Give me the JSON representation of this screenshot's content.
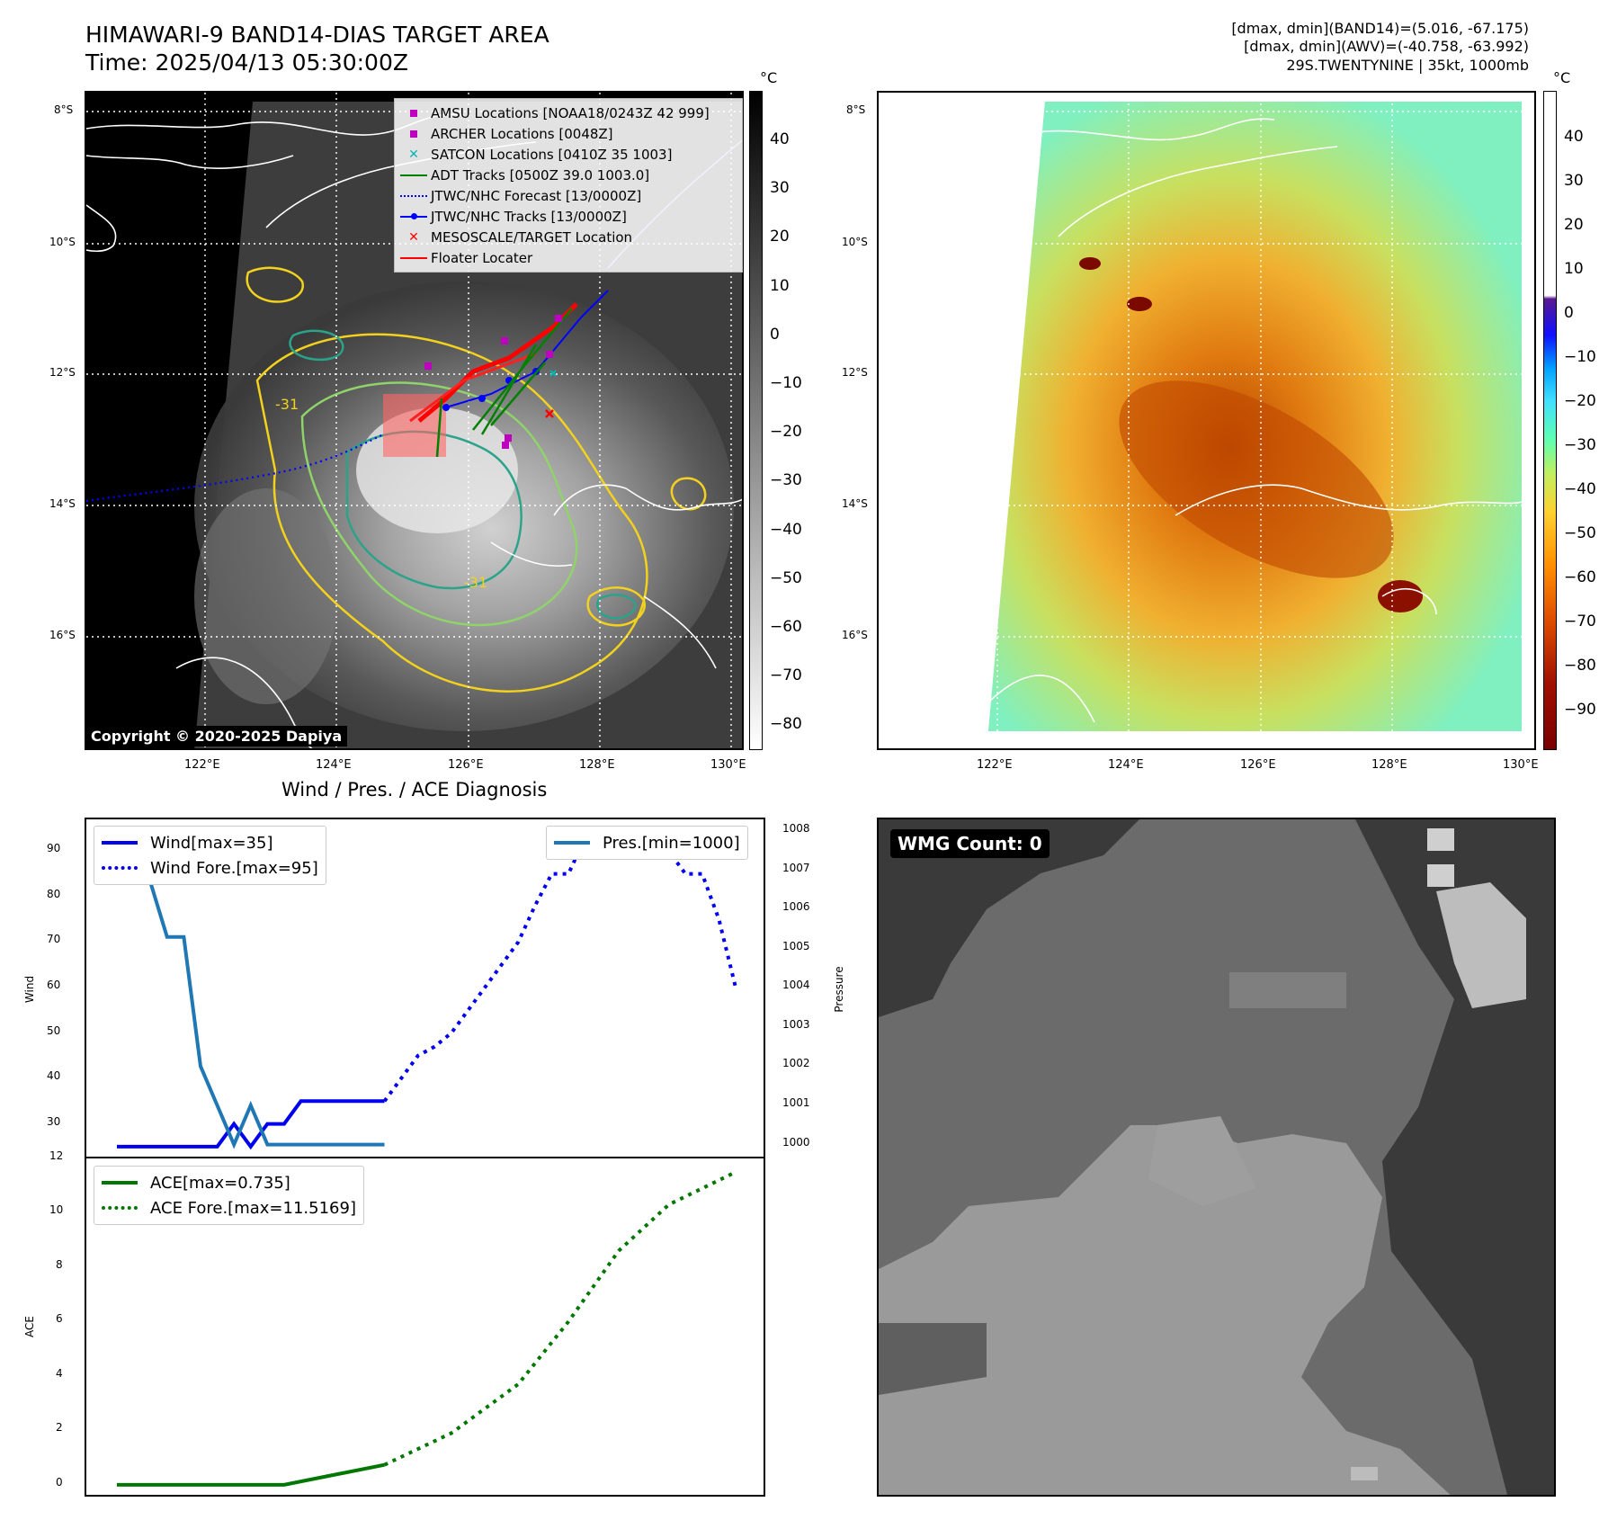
{
  "header": {
    "title_line1": "HIMAWARI-9 BAND14-DIAS TARGET AREA",
    "title_line2": "Time: 2025/04/13 05:30:00Z",
    "info_line1": "[dmax, dmin](BAND14)=(5.016, -67.175)",
    "info_line2": "[dmax, dmin](AWV)=(-40.758, -63.992)",
    "info_line3": "29S.TWENTYNINE | 35kt, 1000mb"
  },
  "map": {
    "lat_labels": [
      "8°S",
      "10°S",
      "12°S",
      "14°S",
      "16°S"
    ],
    "lon_labels": [
      "122°E",
      "124°E",
      "126°E",
      "128°E",
      "130°E"
    ],
    "colorbar_unit": "°C",
    "ir_colorbar_ticks": [
      "40",
      "30",
      "20",
      "10",
      "0",
      "−10",
      "−20",
      "−30",
      "−40",
      "−50",
      "−60",
      "−70",
      "−80"
    ],
    "awv_colorbar_ticks": [
      "40",
      "30",
      "20",
      "10",
      "0",
      "−10",
      "−20",
      "−30",
      "−40",
      "−50",
      "−60",
      "−70",
      "−80",
      "−90"
    ],
    "contour_label": "-31",
    "copyright": "Copyright © 2020-2025 Dapiya",
    "legend": [
      {
        "label": "AMSU Locations [NOAA18/0243Z 42 999]",
        "icon": "magenta-square",
        "color": "#c000c0"
      },
      {
        "label": "ARCHER Locations [0048Z]",
        "icon": "magenta-square",
        "color": "#c000c0"
      },
      {
        "label": "SATCON Locations [0410Z 35 1003]",
        "icon": "cyan-x",
        "color": "#00b5b5"
      },
      {
        "label": "ADT Tracks [0500Z 39.0 1003.0]",
        "icon": "green-line",
        "color": "#008000"
      },
      {
        "label": "JTWC/NHC Forecast [13/0000Z]",
        "icon": "blue-dotted-line",
        "color": "#0000ff"
      },
      {
        "label": "JTWC/NHC Tracks [13/0000Z]",
        "icon": "blue-line-dot",
        "color": "#0000ff"
      },
      {
        "label": "MESOSCALE/TARGET Location",
        "icon": "red-x",
        "color": "#ff0000"
      },
      {
        "label": "Floater Locater",
        "icon": "red-line",
        "color": "#ff0000"
      }
    ]
  },
  "wmg": {
    "label": "WMG Count: 0"
  },
  "chart_data": [
    {
      "type": "line",
      "title": "Wind / Pres. / ACE Diagnosis",
      "ylabel": "Wind",
      "ylabel_right": "Pressure",
      "x": [
        0,
        1,
        2,
        3,
        4,
        5,
        6,
        7,
        8,
        9,
        10,
        11,
        12,
        13,
        14,
        15,
        16,
        17,
        18,
        19,
        20,
        21,
        22,
        23,
        24,
        25,
        26,
        27,
        28,
        29,
        30,
        31,
        32,
        33,
        34,
        35,
        36,
        37
      ],
      "ylim": [
        22,
        97
      ],
      "yticks": [
        "30",
        "40",
        "50",
        "60",
        "70",
        "80",
        "90"
      ],
      "y2lim": [
        999.6,
        1008.3
      ],
      "y2ticks": [
        "1000",
        "1001",
        "1002",
        "1003",
        "1004",
        "1005",
        "1006",
        "1007",
        "1008"
      ],
      "series": [
        {
          "name": "Wind[max=35]",
          "axis": "left",
          "style": "solid",
          "color": "#0000ee",
          "x": [
            0,
            6,
            7,
            8,
            9,
            10,
            11,
            12,
            13,
            14,
            15,
            16
          ],
          "values": [
            25,
            25,
            30,
            25,
            30,
            30,
            35,
            35,
            35,
            35,
            35,
            35
          ]
        },
        {
          "name": "Wind Fore.[max=95]",
          "axis": "left",
          "style": "dotted",
          "color": "#0000ee",
          "x": [
            16,
            17,
            18,
            19,
            20,
            21,
            22,
            23,
            24,
            25,
            26,
            27,
            28,
            29,
            30,
            31,
            32,
            33,
            34,
            35,
            36,
            37
          ],
          "values": [
            35,
            40,
            45,
            47,
            50,
            55,
            60,
            65,
            70,
            78,
            85,
            85,
            93,
            95,
            95,
            95,
            92,
            90,
            85,
            85,
            75,
            60
          ]
        },
        {
          "name": "Pres.[min=1000]",
          "axis": "right",
          "style": "solid",
          "color": "#1f77b4",
          "x": [
            0,
            1,
            2,
            3,
            4,
            5,
            6,
            7,
            8,
            9,
            10,
            11,
            12,
            13,
            14,
            15,
            16
          ],
          "values": [
            1008,
            1006.7,
            1006.7,
            1005.3,
            1005.3,
            1002,
            1001,
            1000,
            1001,
            1000,
            1000,
            1000,
            1000,
            1000,
            1000,
            1000,
            1000
          ]
        }
      ]
    },
    {
      "type": "line",
      "ylabel": "ACE",
      "ylim": [
        -0.5,
        12
      ],
      "yticks": [
        "0",
        "2",
        "4",
        "6",
        "8",
        "10",
        "12"
      ],
      "series": [
        {
          "name": "ACE[max=0.735]",
          "style": "solid",
          "color": "#007700",
          "x": [
            0,
            10,
            16
          ],
          "values": [
            0,
            0,
            0.735
          ]
        },
        {
          "name": "ACE Fore.[max=11.5169]",
          "style": "dotted",
          "color": "#007700",
          "x": [
            16,
            20,
            24,
            27,
            30,
            33,
            36,
            37
          ],
          "values": [
            0.735,
            1.9,
            3.7,
            6.0,
            8.6,
            10.3,
            11.2,
            11.5
          ]
        }
      ]
    }
  ]
}
